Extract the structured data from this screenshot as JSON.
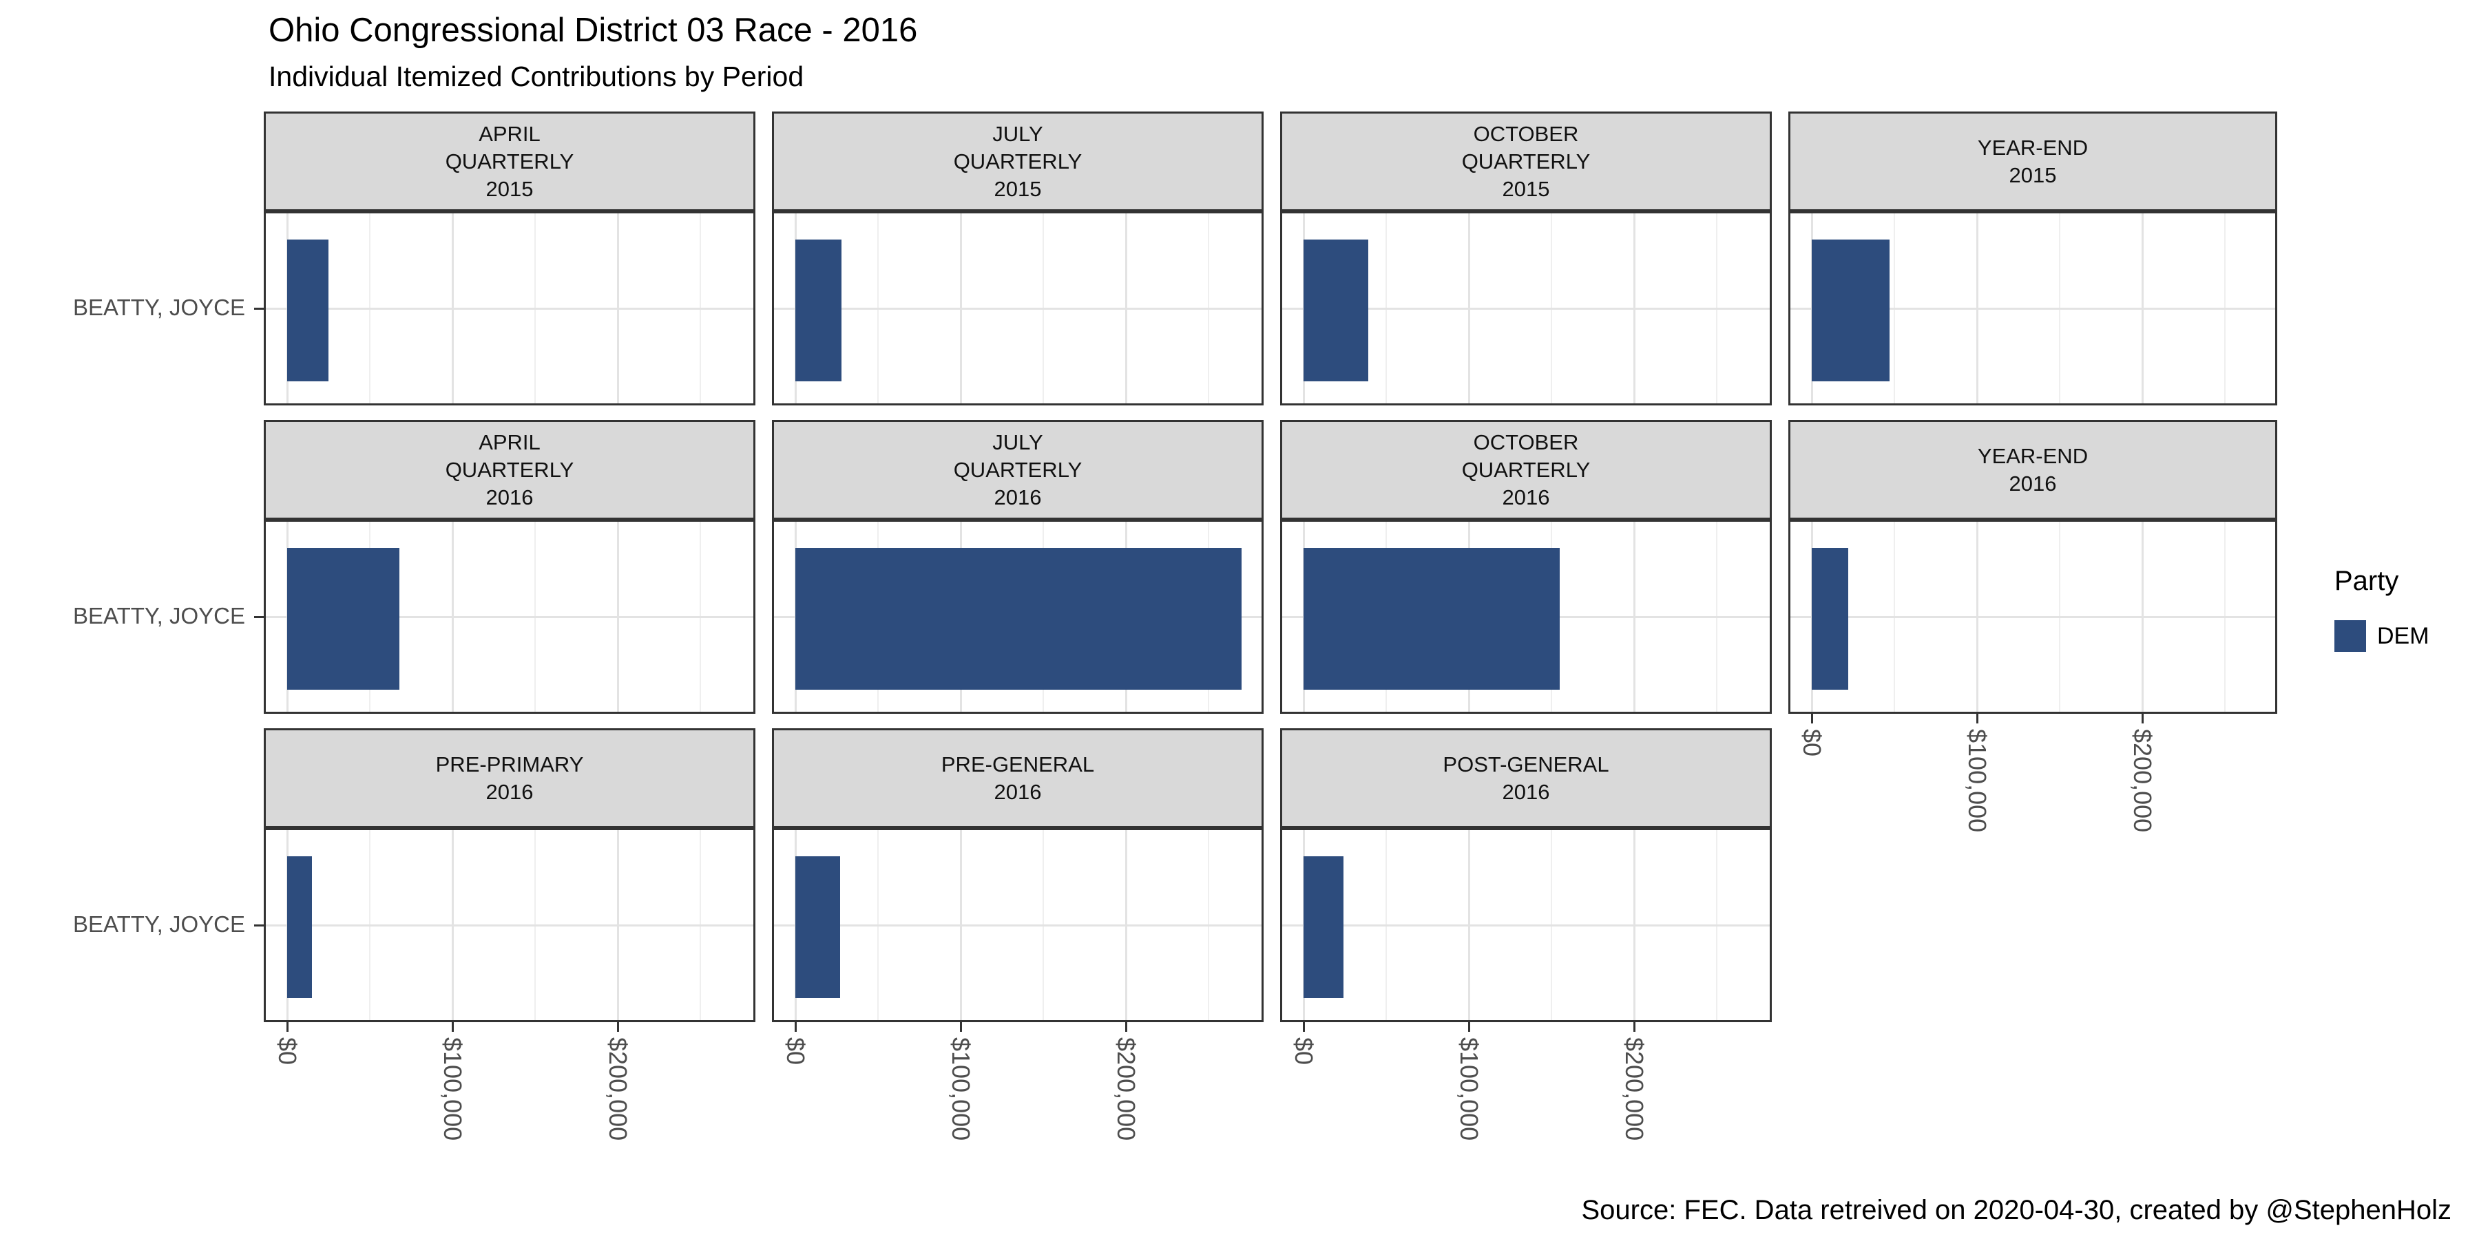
{
  "title": "Ohio Congressional District 03 Race - 2016",
  "subtitle": "Individual Itemized Contributions by Period",
  "caption": "Source: FEC. Data retreived on 2020-04-30, created by @StephenHolz",
  "legend": {
    "title": "Party",
    "items": [
      {
        "label": "DEM",
        "color": "#2D4C7D"
      }
    ]
  },
  "axis": {
    "x_tick_labels": [
      "$0",
      "$100,000",
      "$200,000"
    ],
    "x_tick_values": [
      0,
      100000,
      200000
    ]
  },
  "colors": {
    "bar": "#2D4C7D",
    "strip_fill": "#D9D9D9",
    "panel_border": "#333333",
    "grid_major": "#E3E3E3",
    "grid_minor": "#EFEFEF",
    "axis_text": "#4D4D4D"
  },
  "chart_data": {
    "type": "bar",
    "orientation": "horizontal",
    "title": "Ohio Congressional District 03 Race - 2016",
    "subtitle": "Individual Itemized Contributions by Period",
    "candidate": "BEATTY, JOYCE",
    "party": "DEM",
    "bar_color": "#2D4C7D",
    "xlabel": "",
    "ylabel": "",
    "xlim": [
      0,
      270000
    ],
    "x_ticks": [
      0,
      100000,
      200000
    ],
    "x_tick_labels": [
      "$0",
      "$100,000",
      "$200,000"
    ],
    "grid_minor_ticks": [
      50000,
      150000,
      250000
    ],
    "legend_position": "right",
    "facets": [
      {
        "row": 1,
        "col": 1,
        "period": "APRIL QUARTERLY 2015",
        "strip_lines": [
          "APRIL",
          "QUARTERLY",
          "2015"
        ],
        "candidate": "BEATTY, JOYCE",
        "party": "DEM",
        "value": 25000
      },
      {
        "row": 1,
        "col": 2,
        "period": "JULY QUARTERLY 2015",
        "strip_lines": [
          "JULY",
          "QUARTERLY",
          "2015"
        ],
        "candidate": "BEATTY, JOYCE",
        "party": "DEM",
        "value": 28000
      },
      {
        "row": 1,
        "col": 3,
        "period": "OCTOBER QUARTERLY 2015",
        "strip_lines": [
          "OCTOBER",
          "QUARTERLY",
          "2015"
        ],
        "candidate": "BEATTY, JOYCE",
        "party": "DEM",
        "value": 39000
      },
      {
        "row": 1,
        "col": 4,
        "period": "YEAR-END 2015",
        "strip_lines": [
          "YEAR-END",
          "2015"
        ],
        "candidate": "BEATTY, JOYCE",
        "party": "DEM",
        "value": 47000
      },
      {
        "row": 2,
        "col": 1,
        "period": "APRIL QUARTERLY 2016",
        "strip_lines": [
          "APRIL",
          "QUARTERLY",
          "2016"
        ],
        "candidate": "BEATTY, JOYCE",
        "party": "DEM",
        "value": 68000
      },
      {
        "row": 2,
        "col": 2,
        "period": "JULY QUARTERLY 2016",
        "strip_lines": [
          "JULY",
          "QUARTERLY",
          "2016"
        ],
        "candidate": "BEATTY, JOYCE",
        "party": "DEM",
        "value": 270000
      },
      {
        "row": 2,
        "col": 3,
        "period": "OCTOBER QUARTERLY 2016",
        "strip_lines": [
          "OCTOBER",
          "QUARTERLY",
          "2016"
        ],
        "candidate": "BEATTY, JOYCE",
        "party": "DEM",
        "value": 155000
      },
      {
        "row": 2,
        "col": 4,
        "period": "YEAR-END 2016",
        "strip_lines": [
          "YEAR-END",
          "2016"
        ],
        "candidate": "BEATTY, JOYCE",
        "party": "DEM",
        "value": 22000
      },
      {
        "row": 3,
        "col": 1,
        "period": "PRE-PRIMARY 2016",
        "strip_lines": [
          "PRE-PRIMARY",
          "2016"
        ],
        "candidate": "BEATTY, JOYCE",
        "party": "DEM",
        "value": 15000
      },
      {
        "row": 3,
        "col": 2,
        "period": "PRE-GENERAL 2016",
        "strip_lines": [
          "PRE-GENERAL",
          "2016"
        ],
        "candidate": "BEATTY, JOYCE",
        "party": "DEM",
        "value": 27000
      },
      {
        "row": 3,
        "col": 3,
        "period": "POST-GENERAL 2016",
        "strip_lines": [
          "POST-GENERAL",
          "2016"
        ],
        "candidate": "BEATTY, JOYCE",
        "party": "DEM",
        "value": 24000
      }
    ]
  }
}
